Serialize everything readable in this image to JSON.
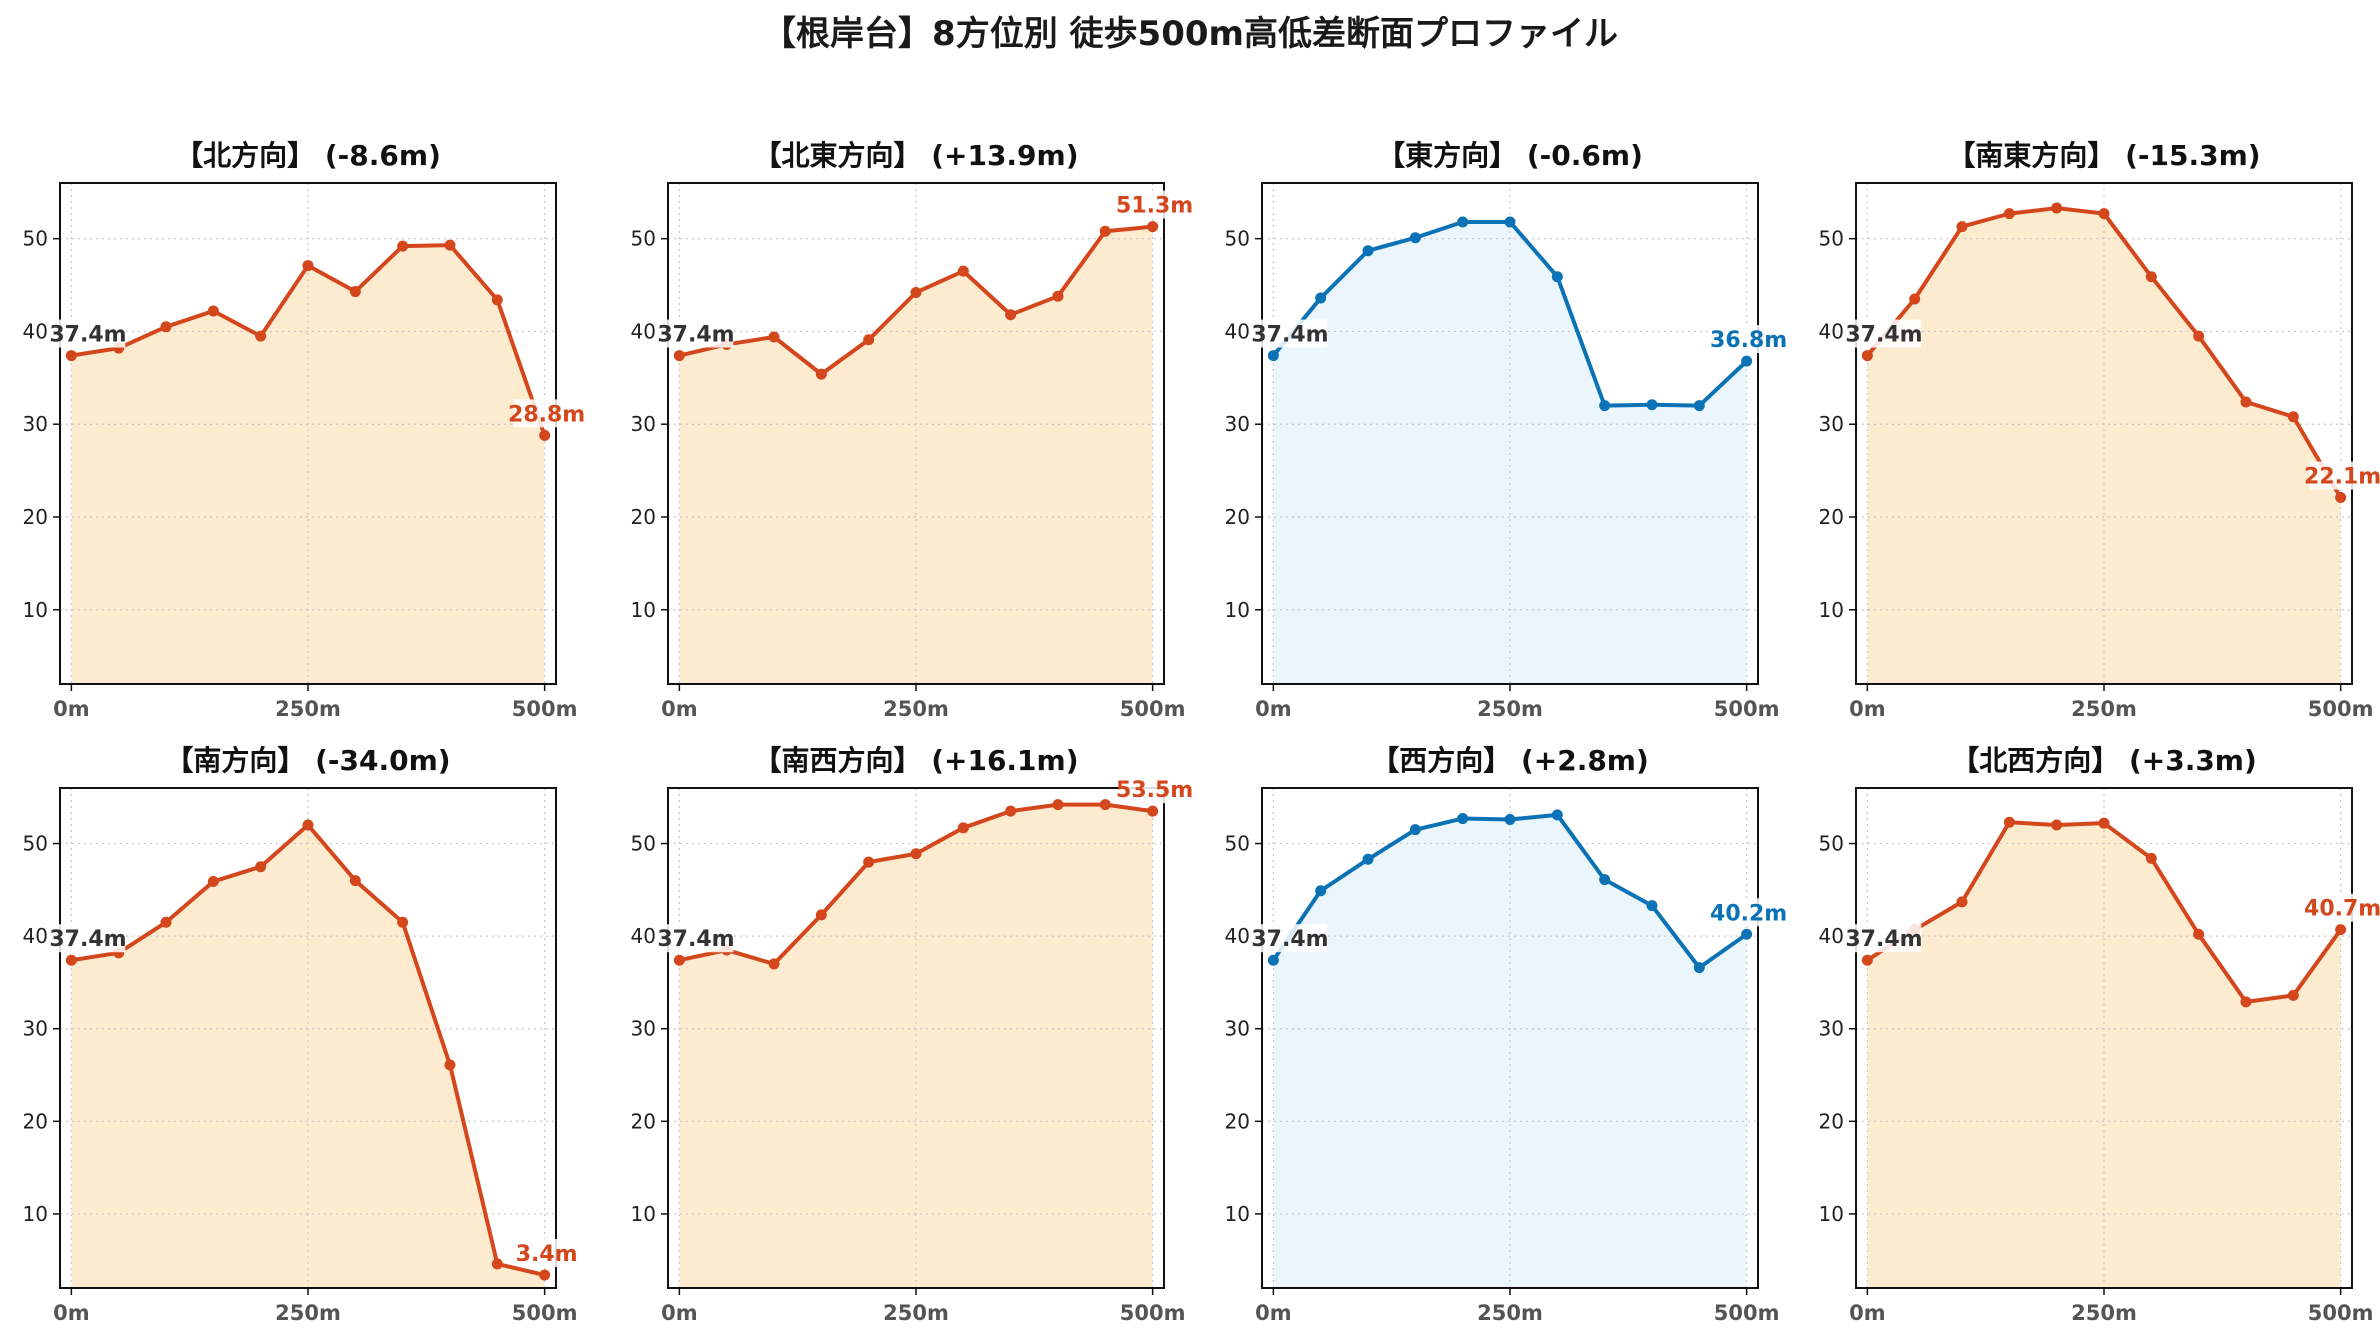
{
  "title": "【根岸台】8方位別 徒歩500m高低差断面プロファイル",
  "colors": {
    "descent_line": "#d4461b",
    "descent_fill": "#fdebd0",
    "flat_line": "#0b73b5",
    "flat_fill": "#eaf6fb"
  },
  "chart_data": [
    {
      "type": "area",
      "title": "【北方向】 (-8.6m)",
      "style": "descent",
      "x": [
        0,
        50,
        100,
        150,
        200,
        250,
        300,
        350,
        400,
        450,
        500
      ],
      "y": [
        37.4,
        38.2,
        40.5,
        42.2,
        39.5,
        47.1,
        44.3,
        49.2,
        49.3,
        43.4,
        28.8
      ],
      "ylim": [
        2,
        56
      ],
      "xlim": [
        -12,
        512
      ],
      "yticks": [
        10,
        20,
        30,
        40,
        50
      ],
      "xticks": [
        0,
        250,
        500
      ],
      "xtick_labels": [
        "0m",
        "250m",
        "500m"
      ],
      "start_label": "37.4m",
      "end_label": "28.8m",
      "grid": true
    },
    {
      "type": "area",
      "title": "【北東方向】 (+13.9m)",
      "style": "descent",
      "x": [
        0,
        50,
        100,
        150,
        200,
        250,
        300,
        350,
        400,
        450,
        500
      ],
      "y": [
        37.4,
        38.6,
        39.4,
        35.4,
        39.1,
        44.2,
        46.5,
        41.8,
        43.8,
        50.8,
        51.3
      ],
      "ylim": [
        2,
        56
      ],
      "xlim": [
        -12,
        512
      ],
      "yticks": [
        10,
        20,
        30,
        40,
        50
      ],
      "xticks": [
        0,
        250,
        500
      ],
      "xtick_labels": [
        "0m",
        "250m",
        "500m"
      ],
      "start_label": "37.4m",
      "end_label": "51.3m",
      "grid": true
    },
    {
      "type": "area",
      "title": "【東方向】 (-0.6m)",
      "style": "flat",
      "x": [
        0,
        50,
        100,
        150,
        200,
        250,
        300,
        350,
        400,
        450,
        500
      ],
      "y": [
        37.4,
        43.6,
        48.7,
        50.1,
        51.8,
        51.8,
        45.9,
        32.0,
        32.1,
        32.0,
        36.8
      ],
      "ylim": [
        2,
        56
      ],
      "xlim": [
        -12,
        512
      ],
      "yticks": [
        10,
        20,
        30,
        40,
        50
      ],
      "xticks": [
        0,
        250,
        500
      ],
      "xtick_labels": [
        "0m",
        "250m",
        "500m"
      ],
      "start_label": "37.4m",
      "end_label": "36.8m",
      "grid": true
    },
    {
      "type": "area",
      "title": "【南東方向】 (-15.3m)",
      "style": "descent",
      "x": [
        0,
        50,
        100,
        150,
        200,
        250,
        300,
        350,
        400,
        450,
        500
      ],
      "y": [
        37.4,
        43.5,
        51.3,
        52.7,
        53.3,
        52.7,
        45.9,
        39.5,
        32.4,
        30.8,
        22.1
      ],
      "ylim": [
        2,
        56
      ],
      "xlim": [
        -12,
        512
      ],
      "yticks": [
        10,
        20,
        30,
        40,
        50
      ],
      "xticks": [
        0,
        250,
        500
      ],
      "xtick_labels": [
        "0m",
        "250m",
        "500m"
      ],
      "start_label": "37.4m",
      "end_label": "22.1m",
      "grid": true
    },
    {
      "type": "area",
      "title": "【南方向】 (-34.0m)",
      "style": "descent",
      "x": [
        0,
        50,
        100,
        150,
        200,
        250,
        300,
        350,
        400,
        450,
        500
      ],
      "y": [
        37.4,
        38.2,
        41.5,
        45.9,
        47.5,
        52.0,
        46.0,
        41.5,
        26.1,
        4.6,
        3.4
      ],
      "ylim": [
        2,
        56
      ],
      "xlim": [
        -12,
        512
      ],
      "yticks": [
        10,
        20,
        30,
        40,
        50
      ],
      "xticks": [
        0,
        250,
        500
      ],
      "xtick_labels": [
        "0m",
        "250m",
        "500m"
      ],
      "start_label": "37.4m",
      "end_label": "3.4m",
      "grid": true
    },
    {
      "type": "area",
      "title": "【南西方向】 (+16.1m)",
      "style": "descent",
      "x": [
        0,
        50,
        100,
        150,
        200,
        250,
        300,
        350,
        400,
        450,
        500
      ],
      "y": [
        37.4,
        38.5,
        37.0,
        42.3,
        48.0,
        48.9,
        51.7,
        53.5,
        54.2,
        54.2,
        53.5
      ],
      "ylim": [
        2,
        56
      ],
      "xlim": [
        -12,
        512
      ],
      "yticks": [
        10,
        20,
        30,
        40,
        50
      ],
      "xticks": [
        0,
        250,
        500
      ],
      "xtick_labels": [
        "0m",
        "250m",
        "500m"
      ],
      "start_label": "37.4m",
      "end_label": "53.5m",
      "grid": true
    },
    {
      "type": "area",
      "title": "【西方向】 (+2.8m)",
      "style": "flat",
      "x": [
        0,
        50,
        100,
        150,
        200,
        250,
        300,
        350,
        400,
        450,
        500
      ],
      "y": [
        37.4,
        44.9,
        48.3,
        51.5,
        52.7,
        52.6,
        53.1,
        46.1,
        43.3,
        36.6,
        40.2
      ],
      "ylim": [
        2,
        56
      ],
      "xlim": [
        -12,
        512
      ],
      "yticks": [
        10,
        20,
        30,
        40,
        50
      ],
      "xticks": [
        0,
        250,
        500
      ],
      "xtick_labels": [
        "0m",
        "250m",
        "500m"
      ],
      "start_label": "37.4m",
      "end_label": "40.2m",
      "grid": true
    },
    {
      "type": "area",
      "title": "【北西方向】 (+3.3m)",
      "style": "descent",
      "x": [
        0,
        50,
        100,
        150,
        200,
        250,
        300,
        350,
        400,
        450,
        500
      ],
      "y": [
        37.4,
        40.7,
        43.7,
        52.3,
        52.0,
        52.2,
        48.4,
        40.2,
        32.9,
        33.6,
        40.7
      ],
      "ylim": [
        2,
        56
      ],
      "xlim": [
        -12,
        512
      ],
      "yticks": [
        10,
        20,
        30,
        40,
        50
      ],
      "xticks": [
        0,
        250,
        500
      ],
      "xtick_labels": [
        "0m",
        "250m",
        "500m"
      ],
      "start_label": "37.4m",
      "end_label": "40.7m",
      "grid": true
    }
  ]
}
